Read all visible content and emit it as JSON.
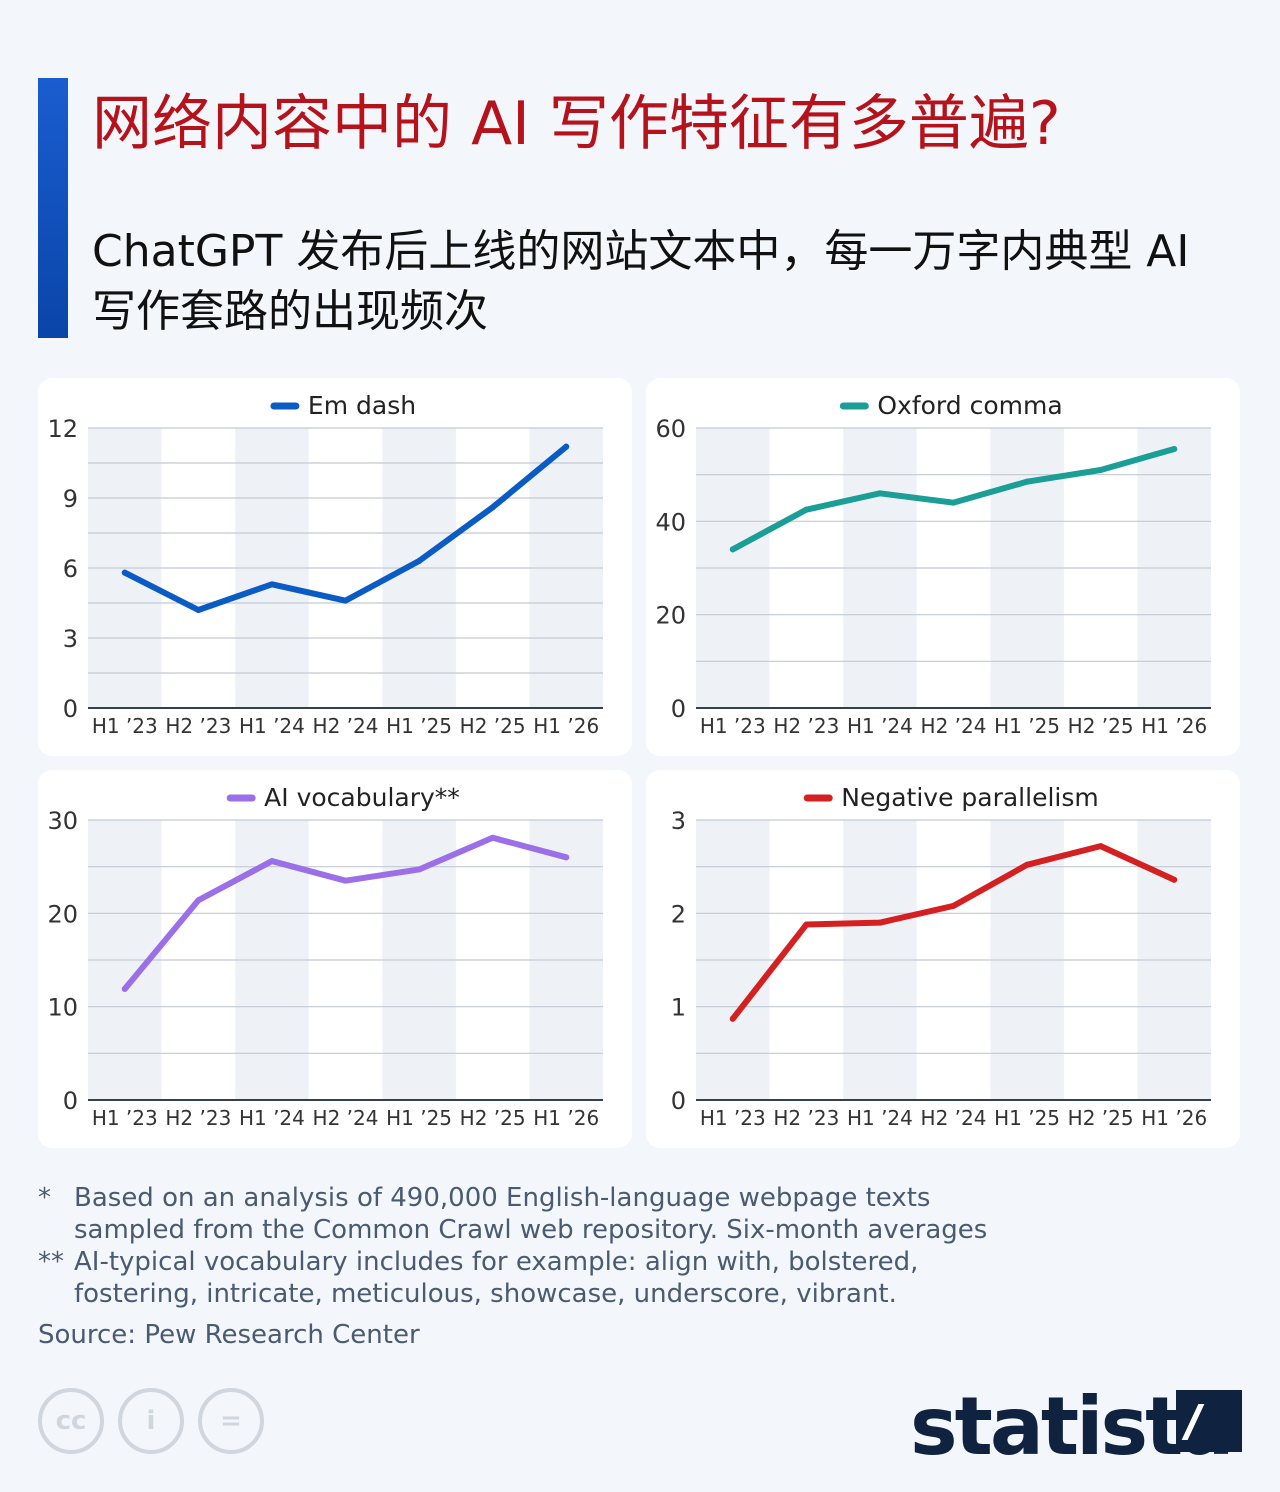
{
  "header": {
    "title": "网络内容中的 AI 写作特征有多普遍?",
    "subtitle": "ChatGPT 发布后上线的网站文本中，每一万字内典型 AI 写作套路的出现频次"
  },
  "chart_data": [
    {
      "type": "line",
      "name": "Em dash",
      "color": "#0a5bc4",
      "categories": [
        "H1 ’23",
        "H2 ’23",
        "H1 ’24",
        "H2 ’24",
        "H1 ’25",
        "H2 ’25",
        "H1 ’26"
      ],
      "values": [
        5.8,
        4.2,
        5.3,
        4.6,
        6.3,
        8.6,
        11.2
      ],
      "ylim": [
        0,
        12
      ],
      "yticks": [
        0,
        3,
        6,
        9,
        12
      ],
      "legend": "top-center"
    },
    {
      "type": "line",
      "name": "Oxford comma",
      "color": "#1a9e96",
      "categories": [
        "H1 ’23",
        "H2 ’23",
        "H1 ’24",
        "H2 ’24",
        "H1 ’25",
        "H2 ’25",
        "H1 ’26"
      ],
      "values": [
        34,
        42.5,
        46,
        44,
        48.5,
        51,
        55.5
      ],
      "ylim": [
        0,
        60
      ],
      "yticks": [
        0,
        20,
        40,
        60
      ],
      "legend": "top-center"
    },
    {
      "type": "line",
      "name": "AI vocabulary**",
      "color": "#9b6fe8",
      "categories": [
        "H1 ’23",
        "H2 ’23",
        "H1 ’24",
        "H2 ’24",
        "H1 ’25",
        "H2 ’25",
        "H1 ’26"
      ],
      "values": [
        11.9,
        21.4,
        25.6,
        23.5,
        24.7,
        28.1,
        26.0
      ],
      "ylim": [
        0,
        30
      ],
      "yticks": [
        0,
        10,
        20,
        30
      ],
      "legend": "top-center"
    },
    {
      "type": "line",
      "name": "Negative parallelism",
      "color": "#d42020",
      "categories": [
        "H1 ’23",
        "H2 ’23",
        "H1 ’24",
        "H2 ’24",
        "H1 ’25",
        "H2 ’25",
        "H1 ’26"
      ],
      "values": [
        0.87,
        1.88,
        1.9,
        2.08,
        2.52,
        2.72,
        2.36
      ],
      "ylim": [
        0,
        3
      ],
      "yticks": [
        0,
        1,
        2,
        3
      ],
      "legend": "top-center"
    }
  ],
  "notes": [
    {
      "mark": "*",
      "text": "Based on an analysis of 490,000 English-language webpage texts sampled from the Common Crawl web repository. Six-month averages"
    },
    {
      "mark": "**",
      "text": "AI-typical vocabulary includes for example: align with, bolstered, fostering, intricate, meticulous, showcase, underscore, vibrant."
    }
  ],
  "source": "Source: Pew Research Center",
  "license_icons": [
    {
      "icon": "cc-icon",
      "glyph": "cc"
    },
    {
      "icon": "attribution-icon",
      "glyph": "i"
    },
    {
      "icon": "no-derivatives-icon",
      "glyph": "="
    }
  ],
  "logo": "statista"
}
